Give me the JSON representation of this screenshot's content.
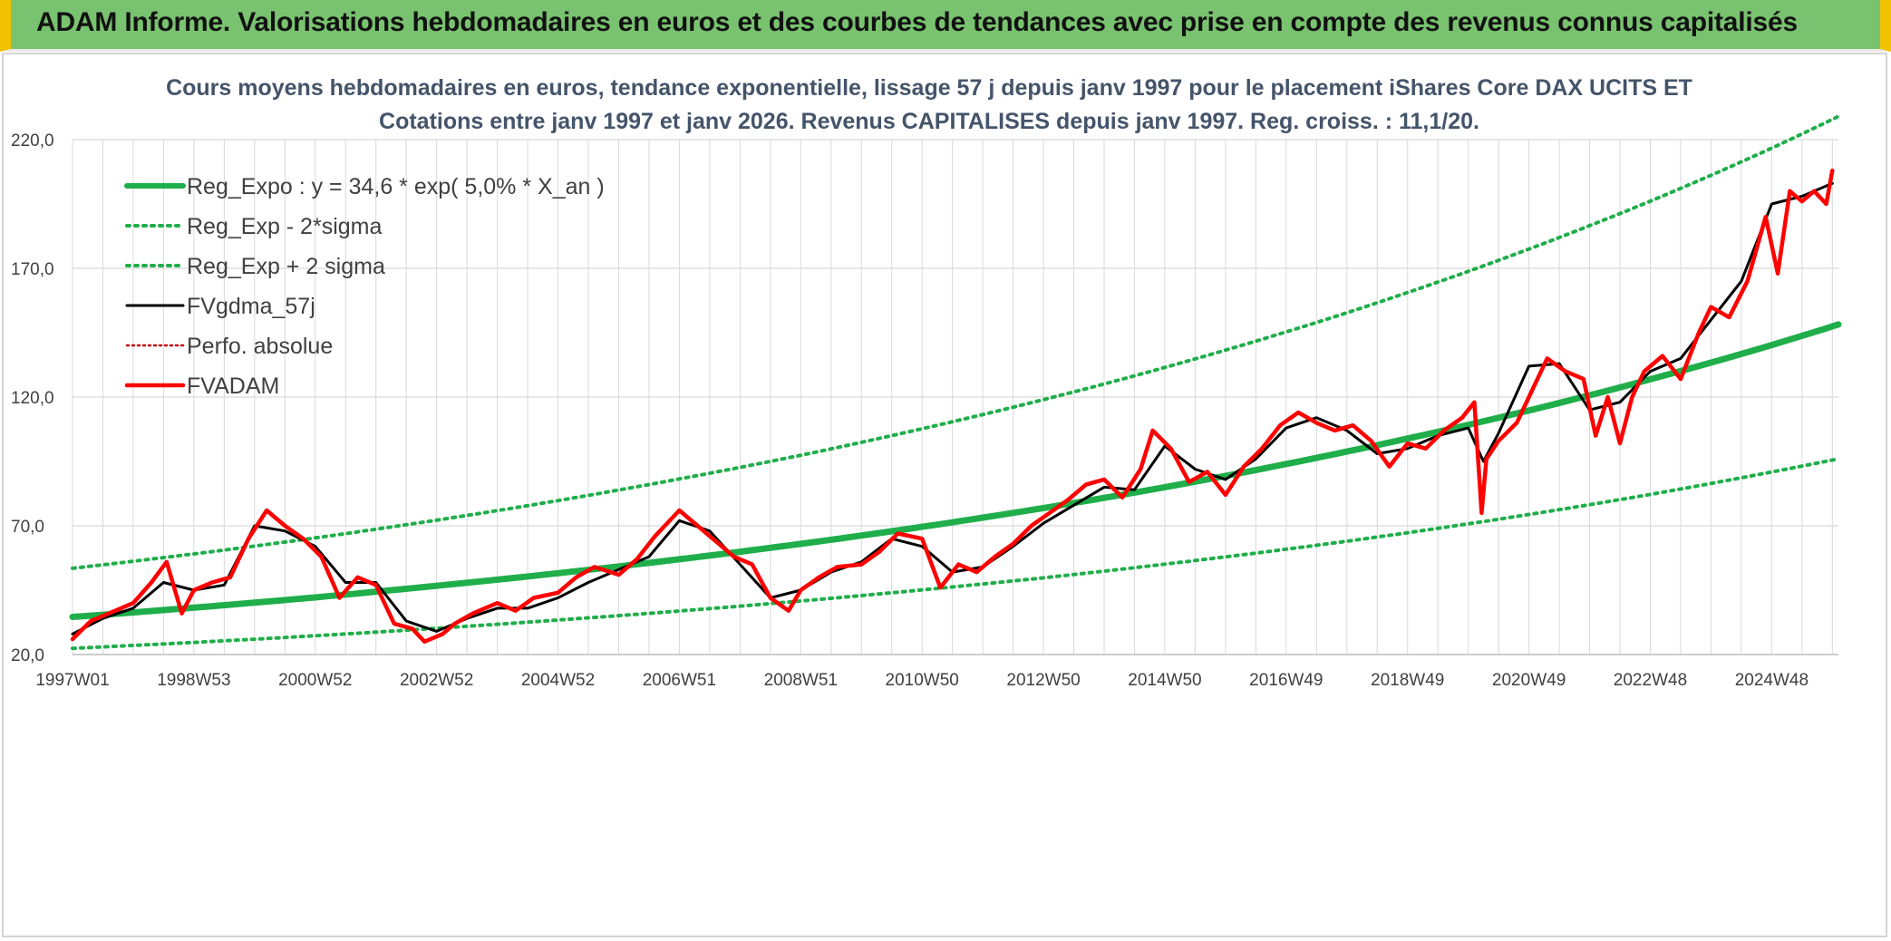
{
  "header": {
    "banner_title": "ADAM Informe. Valorisations hebdomadaires en euros et des courbes de tendances avec prise en compte des revenus connus capitalisés"
  },
  "colors": {
    "banner_bg": "#79c26f",
    "banner_edge": "#f2c200",
    "title_text": "#44546a",
    "grid": "#d9d9d9",
    "reg_expo": "#1fae4a",
    "sigma": "#1fae4a",
    "gdma": "#000000",
    "fvadam": "#ff0000",
    "perfo": "#c00000"
  },
  "chart_data": {
    "type": "line",
    "title": [
      "Cours moyens hebdomadaires en euros, tendance exponentielle, lissage 57 j depuis janv 1997 pour le placement iShares Core DAX UCITS ET",
      "Cotations entre janv 1997 et janv 2026. Revenus CAPITALISES depuis janv 1997. Reg. croiss. : 11,1/20."
    ],
    "xlabel": "",
    "ylabel": "",
    "x_tick_labels": [
      "1997W01",
      "1998W53",
      "2000W52",
      "2002W52",
      "2004W52",
      "2006W51",
      "2008W51",
      "2010W50",
      "2012W50",
      "2014W50",
      "2016W49",
      "2018W49",
      "2020W49",
      "2022W48",
      "2024W48"
    ],
    "x_range_years": [
      1997.0,
      2026.1
    ],
    "y_tick_labels": [
      "20,0",
      "70,0",
      "120,0",
      "170,0",
      "220,0"
    ],
    "y_ticks": [
      20,
      70,
      120,
      170,
      220
    ],
    "ylim": [
      20,
      220
    ],
    "grid": true,
    "legend_position": "top-left",
    "series": [
      {
        "name": "Reg_Expo : y = 34,6 * exp( 5,0% *  X_an )",
        "style": "solid-thick",
        "x": [
          1997.0,
          1999.0,
          2001.0,
          2003.0,
          2005.0,
          2007.0,
          2009.0,
          2011.0,
          2013.0,
          2015.0,
          2017.0,
          2019.0,
          2021.0,
          2023.0,
          2025.0,
          2026.1
        ],
        "y": [
          34.6,
          38.2,
          42.2,
          46.7,
          51.6,
          57.0,
          63.0,
          69.6,
          76.9,
          85.0,
          94.0,
          103.9,
          114.8,
          126.9,
          140.2,
          148.2
        ]
      },
      {
        "name": "Reg_Exp - 2*sigma",
        "style": "dotted",
        "x": [
          1997.0,
          1999.0,
          2001.0,
          2003.0,
          2005.0,
          2007.0,
          2009.0,
          2011.0,
          2013.0,
          2015.0,
          2017.0,
          2019.0,
          2021.0,
          2023.0,
          2025.0,
          2026.1
        ],
        "y": [
          22.4,
          24.7,
          27.3,
          30.2,
          33.4,
          36.9,
          40.8,
          45.1,
          49.8,
          55.1,
          60.9,
          67.3,
          74.4,
          82.2,
          90.9,
          96.0
        ]
      },
      {
        "name": "Reg_Exp + 2 sigma",
        "style": "dotted",
        "x": [
          1997.0,
          1999.0,
          2001.0,
          2003.0,
          2005.0,
          2007.0,
          2009.0,
          2011.0,
          2013.0,
          2015.0,
          2017.0,
          2019.0,
          2021.0,
          2023.0,
          2025.0,
          2026.1
        ],
        "y": [
          53.5,
          59.1,
          65.3,
          72.2,
          79.8,
          88.2,
          97.4,
          107.7,
          119.0,
          131.5,
          145.3,
          160.6,
          177.5,
          196.1,
          216.7,
          229.0
        ]
      },
      {
        "name": "FVgdma_57j",
        "style": "solid",
        "x": [
          1997.0,
          1997.5,
          1998.0,
          1998.5,
          1999.0,
          1999.5,
          2000.0,
          2000.5,
          2001.0,
          2001.5,
          2002.0,
          2002.5,
          2003.0,
          2003.5,
          2004.0,
          2004.5,
          2005.0,
          2005.5,
          2006.0,
          2006.5,
          2007.0,
          2007.5,
          2008.0,
          2008.5,
          2009.0,
          2009.5,
          2010.0,
          2010.5,
          2011.0,
          2011.5,
          2012.0,
          2012.5,
          2013.0,
          2013.5,
          2014.0,
          2014.5,
          2015.0,
          2015.5,
          2016.0,
          2016.5,
          2017.0,
          2017.5,
          2018.0,
          2018.5,
          2019.0,
          2019.5,
          2020.0,
          2020.25,
          2020.5,
          2021.0,
          2021.5,
          2022.0,
          2022.5,
          2023.0,
          2023.5,
          2024.0,
          2024.5,
          2025.0,
          2025.5,
          2026.0
        ],
        "y": [
          28.0,
          34.0,
          38.0,
          48.0,
          45.0,
          47.0,
          70.0,
          68.0,
          62.0,
          48.0,
          48.0,
          33.0,
          29.0,
          34.0,
          38.0,
          38.0,
          42.0,
          48.0,
          53.0,
          58.0,
          72.0,
          68.0,
          55.0,
          42.0,
          45.0,
          52.0,
          56.0,
          65.0,
          62.0,
          52.0,
          54.0,
          62.0,
          71.0,
          78.0,
          85.0,
          84.0,
          101.0,
          92.0,
          88.0,
          96.0,
          108.0,
          112.0,
          107.0,
          98.0,
          100.0,
          105.0,
          108.0,
          95.0,
          106.0,
          132.0,
          133.0,
          115.0,
          118.0,
          130.0,
          135.0,
          150.0,
          165.0,
          195.0,
          198.0,
          203.0
        ]
      },
      {
        "name": "Perfo. absolue",
        "style": "dotted",
        "x": [],
        "y": []
      },
      {
        "name": "FVADAM",
        "style": "solid",
        "x": [
          1997.0,
          1997.3,
          1997.6,
          1998.0,
          1998.3,
          1998.55,
          1998.8,
          1999.0,
          1999.3,
          1999.6,
          1999.9,
          2000.2,
          2000.5,
          2000.8,
          2001.1,
          2001.4,
          2001.7,
          2002.0,
          2002.3,
          2002.6,
          2002.8,
          2003.1,
          2003.3,
          2003.6,
          2004.0,
          2004.3,
          2004.6,
          2005.0,
          2005.3,
          2005.6,
          2006.0,
          2006.3,
          2006.6,
          2007.0,
          2007.3,
          2007.6,
          2007.9,
          2008.2,
          2008.5,
          2008.8,
          2009.0,
          2009.3,
          2009.6,
          2010.0,
          2010.3,
          2010.6,
          2011.0,
          2011.3,
          2011.6,
          2011.9,
          2012.2,
          2012.5,
          2012.8,
          2013.1,
          2013.4,
          2013.7,
          2014.0,
          2014.3,
          2014.6,
          2014.8,
          2015.1,
          2015.4,
          2015.7,
          2016.0,
          2016.3,
          2016.6,
          2016.9,
          2017.2,
          2017.5,
          2017.8,
          2018.1,
          2018.4,
          2018.7,
          2019.0,
          2019.3,
          2019.6,
          2019.9,
          2020.1,
          2020.22,
          2020.3,
          2020.5,
          2020.8,
          2021.0,
          2021.3,
          2021.6,
          2021.9,
          2022.1,
          2022.3,
          2022.5,
          2022.7,
          2022.9,
          2023.2,
          2023.5,
          2023.8,
          2024.0,
          2024.3,
          2024.6,
          2024.9,
          2025.1,
          2025.3,
          2025.5,
          2025.7,
          2025.9,
          2026.0
        ],
        "y": [
          26.0,
          33.0,
          36.0,
          40.0,
          48.0,
          56.0,
          36.0,
          45.0,
          48.0,
          50.0,
          65.0,
          76.0,
          70.0,
          65.0,
          58.0,
          42.0,
          50.0,
          47.0,
          32.0,
          30.0,
          25.0,
          28.0,
          32.0,
          36.0,
          40.0,
          37.0,
          42.0,
          44.0,
          50.0,
          54.0,
          51.0,
          57.0,
          66.0,
          76.0,
          70.0,
          64.0,
          58.0,
          55.0,
          42.0,
          37.0,
          45.0,
          50.0,
          54.0,
          55.0,
          60.0,
          67.0,
          65.0,
          46.0,
          55.0,
          52.0,
          58.0,
          63.0,
          70.0,
          75.0,
          80.0,
          86.0,
          88.0,
          81.0,
          92.0,
          107.0,
          100.0,
          87.0,
          91.0,
          82.0,
          93.0,
          100.0,
          109.0,
          114.0,
          110.0,
          107.0,
          109.0,
          103.0,
          93.0,
          102.0,
          100.0,
          107.0,
          112.0,
          118.0,
          75.0,
          96.0,
          103.0,
          110.0,
          120.0,
          135.0,
          130.0,
          127.0,
          105.0,
          120.0,
          102.0,
          120.0,
          130.0,
          136.0,
          127.0,
          145.0,
          155.0,
          151.0,
          165.0,
          190.0,
          168.0,
          200.0,
          196.0,
          200.0,
          195.0,
          208.0
        ]
      }
    ]
  }
}
